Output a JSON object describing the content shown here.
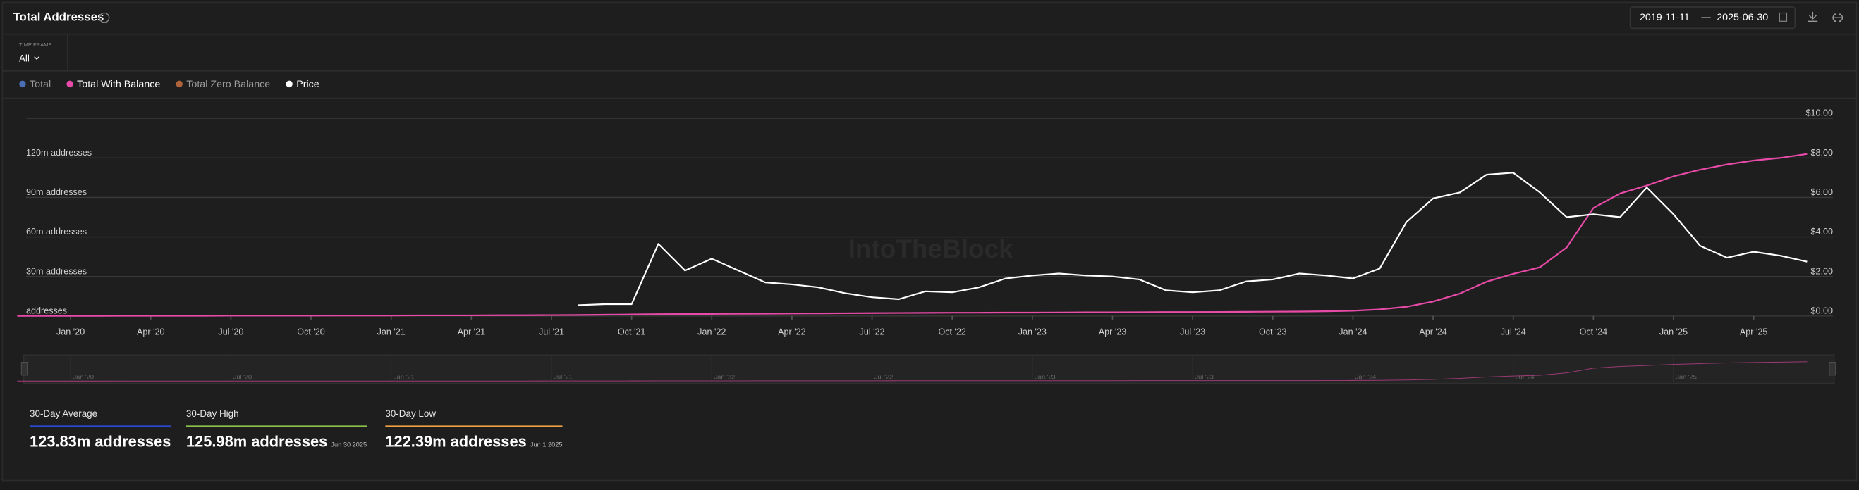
{
  "header": {
    "title": "Total Addresses",
    "date_from": "2019-11-11",
    "date_to": "2025-06-30",
    "watermark": "IntoTheBlock"
  },
  "timeframe": {
    "label": "TIME FRAME",
    "value": "All"
  },
  "chart_data": {
    "type": "line",
    "x": [
      "2019-11",
      "2019-12",
      "2020-01",
      "2020-02",
      "2020-03",
      "2020-04",
      "2020-05",
      "2020-06",
      "2020-07",
      "2020-08",
      "2020-09",
      "2020-10",
      "2020-11",
      "2020-12",
      "2021-01",
      "2021-02",
      "2021-03",
      "2021-04",
      "2021-05",
      "2021-06",
      "2021-07",
      "2021-08",
      "2021-09",
      "2021-10",
      "2021-11",
      "2021-12",
      "2022-01",
      "2022-02",
      "2022-03",
      "2022-04",
      "2022-05",
      "2022-06",
      "2022-07",
      "2022-08",
      "2022-09",
      "2022-10",
      "2022-11",
      "2022-12",
      "2023-01",
      "2023-02",
      "2023-03",
      "2023-04",
      "2023-05",
      "2023-06",
      "2023-07",
      "2023-08",
      "2023-09",
      "2023-10",
      "2023-11",
      "2023-12",
      "2024-01",
      "2024-02",
      "2024-03",
      "2024-04",
      "2024-05",
      "2024-06",
      "2024-07",
      "2024-08",
      "2024-09",
      "2024-10",
      "2024-11",
      "2024-12",
      "2025-01",
      "2025-02",
      "2025-03",
      "2025-04",
      "2025-05",
      "2025-06"
    ],
    "xlim": [
      "2019-11-11",
      "2025-06-30"
    ],
    "xticks": [
      {
        "value": "2020-01",
        "label": "Jan '20"
      },
      {
        "value": "2020-04",
        "label": "Apr '20"
      },
      {
        "value": "2020-07",
        "label": "Jul '20"
      },
      {
        "value": "2020-10",
        "label": "Oct '20"
      },
      {
        "value": "2021-01",
        "label": "Jan '21"
      },
      {
        "value": "2021-04",
        "label": "Apr '21"
      },
      {
        "value": "2021-07",
        "label": "Jul '21"
      },
      {
        "value": "2021-10",
        "label": "Oct '21"
      },
      {
        "value": "2022-01",
        "label": "Jan '22"
      },
      {
        "value": "2022-04",
        "label": "Apr '22"
      },
      {
        "value": "2022-07",
        "label": "Jul '22"
      },
      {
        "value": "2022-10",
        "label": "Oct '22"
      },
      {
        "value": "2023-01",
        "label": "Jan '23"
      },
      {
        "value": "2023-04",
        "label": "Apr '23"
      },
      {
        "value": "2023-07",
        "label": "Jul '23"
      },
      {
        "value": "2023-10",
        "label": "Oct '23"
      },
      {
        "value": "2024-01",
        "label": "Jan '24"
      },
      {
        "value": "2024-04",
        "label": "Apr '24"
      },
      {
        "value": "2024-07",
        "label": "Jul '24"
      },
      {
        "value": "2024-10",
        "label": "Oct '24"
      },
      {
        "value": "2025-01",
        "label": "Jan '25"
      },
      {
        "value": "2025-04",
        "label": "Apr '25"
      }
    ],
    "ylim": [
      0,
      150
    ],
    "yticks": [
      {
        "value": 0,
        "label": "addresses"
      },
      {
        "value": 30,
        "label": "30m addresses"
      },
      {
        "value": 60,
        "label": "60m addresses"
      },
      {
        "value": 90,
        "label": "90m addresses"
      },
      {
        "value": 120,
        "label": "120m addresses"
      }
    ],
    "y2lim": [
      0,
      10
    ],
    "y2ticks": [
      {
        "value": 0,
        "label": "$0.00"
      },
      {
        "value": 2,
        "label": "$2.00"
      },
      {
        "value": 4,
        "label": "$4.00"
      },
      {
        "value": 6,
        "label": "$6.00"
      },
      {
        "value": 8,
        "label": "$8.00"
      },
      {
        "value": 10,
        "label": "$10.00"
      }
    ],
    "grid": true,
    "series": [
      {
        "name": "Total",
        "color": "#4a6fb5",
        "hidden": true
      },
      {
        "name": "Total With Balance",
        "color": "#e84aa8",
        "values": [
          0.1,
          0.1,
          0.1,
          0.1,
          0.2,
          0.2,
          0.2,
          0.2,
          0.3,
          0.3,
          0.3,
          0.3,
          0.4,
          0.4,
          0.4,
          0.5,
          0.5,
          0.5,
          0.6,
          0.6,
          0.7,
          0.8,
          1.0,
          1.2,
          1.4,
          1.5,
          1.6,
          1.7,
          1.8,
          1.9,
          2.0,
          2.1,
          2.2,
          2.3,
          2.4,
          2.5,
          2.5,
          2.6,
          2.6,
          2.7,
          2.8,
          2.8,
          2.9,
          3.0,
          3.0,
          3.1,
          3.2,
          3.3,
          3.4,
          3.6,
          4,
          5,
          7,
          11,
          17,
          26,
          32,
          37,
          52,
          82,
          93,
          99,
          106,
          111,
          115,
          118,
          120,
          123
        ]
      },
      {
        "name": "Total Zero Balance",
        "color": "#b0643a",
        "hidden": true
      },
      {
        "name": "Price",
        "color": "#ffffff",
        "axis": "y2",
        "values": [
          null,
          null,
          null,
          null,
          null,
          null,
          null,
          null,
          null,
          null,
          null,
          null,
          null,
          null,
          null,
          null,
          null,
          null,
          null,
          null,
          null,
          0.55,
          0.6,
          0.6,
          3.65,
          2.3,
          2.9,
          2.3,
          1.7,
          1.6,
          1.45,
          1.15,
          0.95,
          0.85,
          1.25,
          1.2,
          1.45,
          1.9,
          2.05,
          2.15,
          2.05,
          2.0,
          1.85,
          1.3,
          1.2,
          1.3,
          1.75,
          1.85,
          2.15,
          2.05,
          1.9,
          2.4,
          4.75,
          5.95,
          6.25,
          7.15,
          7.25,
          6.25,
          5.0,
          5.15,
          5.0,
          6.5,
          5.15,
          3.55,
          2.95,
          3.25,
          3.05,
          2.75
        ]
      }
    ]
  },
  "stats": [
    {
      "label": "30-Day Average",
      "value": "123.83m addresses",
      "color": "#2a4bd7"
    },
    {
      "label": "30-Day High",
      "value": "125.98m addresses",
      "date": "Jun 30 2025",
      "color": "#8bc34a"
    },
    {
      "label": "30-Day Low",
      "value": "122.39m addresses",
      "date": "Jun 1 2025",
      "color": "#f0a040"
    }
  ]
}
